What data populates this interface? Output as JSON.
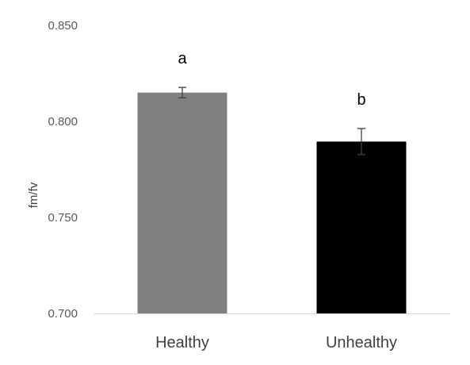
{
  "chart_data": {
    "type": "bar",
    "title": "",
    "xlabel": "",
    "ylabel": "fm/fv",
    "ylim": [
      0.7,
      0.85
    ],
    "yticks": [
      "0.700",
      "0.750",
      "0.800",
      "0.850"
    ],
    "ytick_values": [
      0.7,
      0.75,
      0.8,
      0.85
    ],
    "grid": false,
    "legend": "none",
    "categories": [
      "Healthy",
      "Unhealthy"
    ],
    "values": [
      0.815,
      0.7895
    ],
    "error": [
      0.0027,
      0.0068
    ],
    "significance_labels": [
      "a",
      "b"
    ],
    "colors": [
      "#808080",
      "#000000"
    ],
    "error_bar_color": "#404040",
    "axis_color": "#d9d9d9"
  }
}
